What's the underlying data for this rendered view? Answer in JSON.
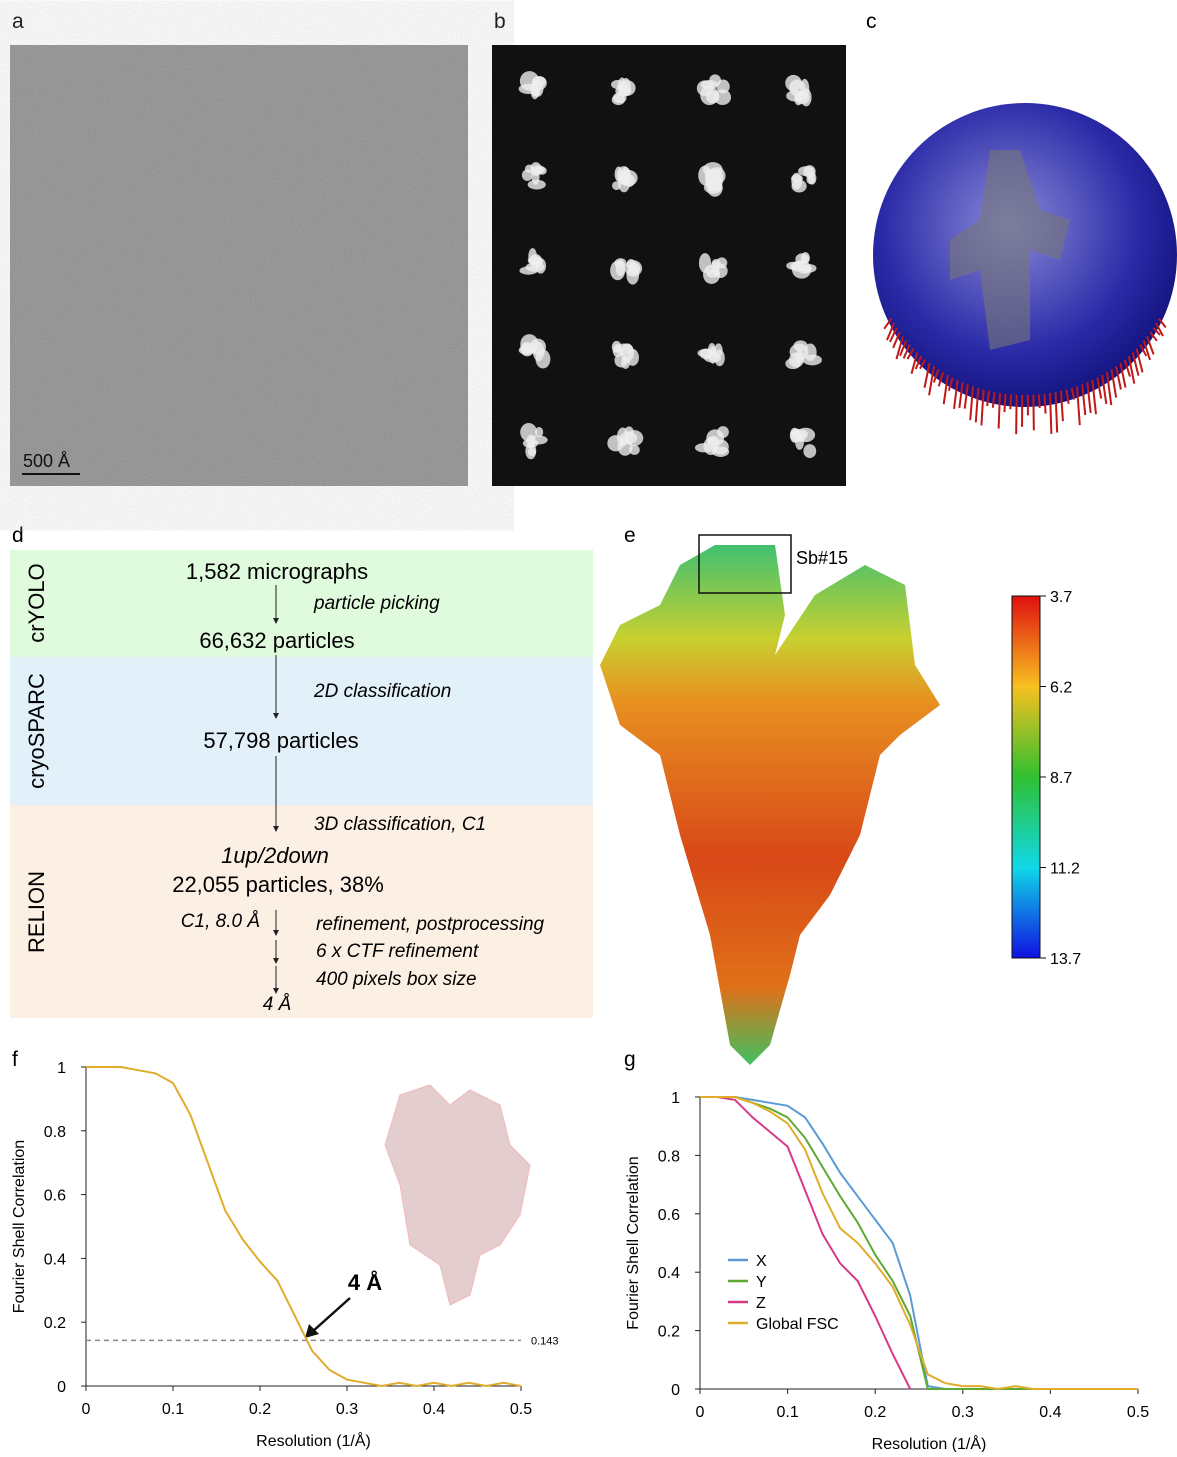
{
  "panels": {
    "a": "a",
    "b": "b",
    "c": "c",
    "d": "d",
    "e": "e",
    "f": "f",
    "g": "g"
  },
  "micrograph": {
    "scale_bar": "500 Å"
  },
  "flowchart": {
    "stages": [
      "crYOLO",
      "cryoSPARC",
      "RELION"
    ],
    "steps": [
      "1,582 micrographs",
      "particle picking",
      "66,632 particles",
      "2D classification",
      "57,798 particles",
      "3D classification, C1",
      "1up/2down",
      "22,055 particles, 38%",
      "C1, 8.0 Å",
      "refinement, postprocessing",
      "6 x CTF refinement",
      "400 pixels box size",
      "4 Å"
    ]
  },
  "density_map": {
    "box_label": "Sb#15",
    "colorbar": {
      "ticks": [
        3.7,
        6.2,
        8.7,
        11.2,
        13.7
      ],
      "lim": [
        3.7,
        13.7
      ]
    }
  },
  "chart_data": [
    {
      "type": "line",
      "x": [
        0,
        0.02,
        0.04,
        0.06,
        0.08,
        0.1,
        0.12,
        0.14,
        0.16,
        0.18,
        0.2,
        0.22,
        0.24,
        0.26,
        0.28,
        0.3,
        0.32,
        0.34,
        0.36,
        0.38,
        0.4,
        0.42,
        0.44,
        0.46,
        0.48,
        0.5
      ],
      "values": [
        1,
        1,
        1,
        0.99,
        0.98,
        0.95,
        0.85,
        0.7,
        0.55,
        0.46,
        0.39,
        0.33,
        0.22,
        0.11,
        0.05,
        0.02,
        0.01,
        0,
        0.01,
        0,
        0.01,
        0,
        0.01,
        0,
        0.01,
        0
      ],
      "color": "#e0ac2b",
      "xlim": [
        0,
        0.5
      ],
      "ylim": [
        0,
        1
      ],
      "xticks": [
        0,
        0.1,
        0.2,
        0.3,
        0.4,
        0.5
      ],
      "yticks": [
        0,
        0.2,
        0.4,
        0.6,
        0.8,
        1
      ],
      "x_label": "Resolution (1/Å)",
      "y_label": "Fourier Shell Correlation",
      "threshold": 0.143,
      "annotation": "4 Å"
    },
    {
      "type": "line",
      "x": [
        0,
        0.02,
        0.04,
        0.06,
        0.08,
        0.1,
        0.12,
        0.14,
        0.16,
        0.18,
        0.2,
        0.22,
        0.24,
        0.26,
        0.28,
        0.3,
        0.32,
        0.34,
        0.36,
        0.38,
        0.4,
        0.42,
        0.44,
        0.46,
        0.48,
        0.5
      ],
      "series": [
        {
          "name": "X",
          "color": "#5b9bd5",
          "values": [
            1,
            1,
            1,
            0.99,
            0.98,
            0.97,
            0.93,
            0.84,
            0.74,
            0.66,
            0.58,
            0.5,
            0.32,
            0.01,
            0,
            0,
            0,
            0,
            0,
            0,
            0,
            0,
            0,
            0,
            0,
            0
          ]
        },
        {
          "name": "Y",
          "color": "#5fa832",
          "values": [
            1,
            1,
            1,
            0.98,
            0.96,
            0.93,
            0.86,
            0.76,
            0.66,
            0.57,
            0.46,
            0.37,
            0.25,
            0,
            0,
            0,
            0,
            0,
            0,
            0,
            0,
            0,
            0,
            0,
            0,
            0
          ]
        },
        {
          "name": "Z",
          "color": "#d63a87",
          "values": [
            1,
            1,
            0.99,
            0.93,
            0.88,
            0.83,
            0.68,
            0.53,
            0.43,
            0.37,
            0.25,
            0.12,
            0,
            null,
            null,
            null,
            null,
            null,
            null,
            null,
            null,
            null,
            null,
            null,
            null,
            null
          ]
        },
        {
          "name": "Global FSC",
          "color": "#e0ac2b",
          "values": [
            1,
            1,
            1,
            0.98,
            0.95,
            0.91,
            0.82,
            0.67,
            0.55,
            0.5,
            0.43,
            0.35,
            0.22,
            0.05,
            0.02,
            0.01,
            0.01,
            0,
            0.01,
            0,
            0,
            0,
            0,
            0,
            0,
            0
          ]
        }
      ],
      "xlim": [
        0,
        0.5
      ],
      "ylim": [
        0,
        1
      ],
      "xticks": [
        0,
        0.1,
        0.2,
        0.3,
        0.4,
        0.5
      ],
      "yticks": [
        0,
        0.2,
        0.4,
        0.6,
        0.8,
        1
      ],
      "x_label": "Resolution (1/Å)",
      "y_label": "Fourier Shell Correlation",
      "legend": "lower left"
    }
  ]
}
